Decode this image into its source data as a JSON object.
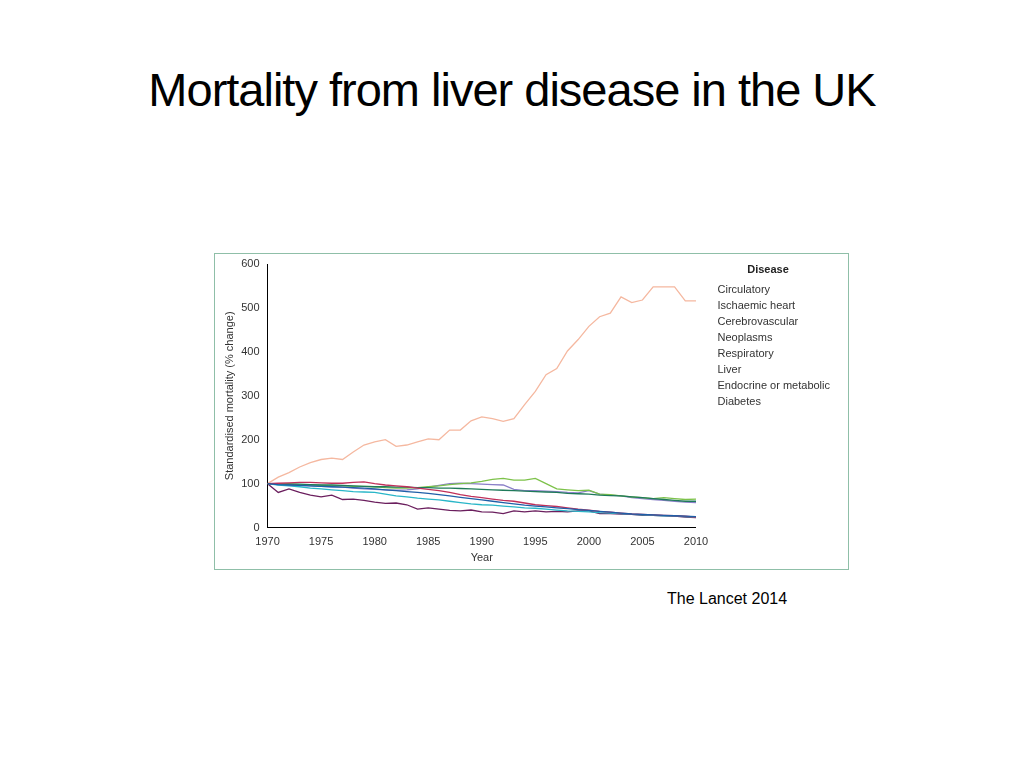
{
  "chart_data": {
    "type": "line",
    "title": "Mortality from liver disease in the UK",
    "source": "The Lancet 2014",
    "x_label": "Year",
    "y_label": "Standardised mortality (% change)",
    "legend_title": "Disease",
    "legend": "right",
    "grid": false,
    "xlim": [
      1970,
      2010
    ],
    "xticks": [
      1970,
      1975,
      1980,
      1985,
      1990,
      1995,
      2000,
      2005,
      2010
    ],
    "ylim": [
      0,
      600
    ],
    "yticks": [
      0,
      100,
      200,
      300,
      400,
      500,
      600
    ],
    "x": [
      1970,
      1971,
      1972,
      1973,
      1974,
      1975,
      1976,
      1977,
      1978,
      1979,
      1980,
      1981,
      1982,
      1983,
      1984,
      1985,
      1986,
      1987,
      1988,
      1989,
      1990,
      1991,
      1992,
      1993,
      1994,
      1995,
      1996,
      1997,
      1998,
      1999,
      2000,
      2001,
      2002,
      2003,
      2004,
      2005,
      2006,
      2007,
      2008,
      2009,
      2010
    ],
    "series": [
      {
        "name": "Circulatory",
        "color": "#1f5fa8",
        "values": [
          100,
          98,
          97,
          96,
          95,
          94,
          93,
          92,
          91,
          90,
          88,
          86,
          84,
          82,
          80,
          78,
          75,
          72,
          69,
          66,
          63,
          60,
          57,
          54,
          51,
          49,
          47,
          45,
          43,
          41,
          39,
          37,
          35,
          33,
          31,
          30,
          29,
          28,
          27,
          26,
          25
        ]
      },
      {
        "name": "Ischaemic heart",
        "color": "#c0305a",
        "values": [
          100,
          101,
          102,
          103,
          103,
          102,
          101,
          101,
          103,
          104,
          100,
          97,
          95,
          93,
          90,
          87,
          84,
          80,
          75,
          71,
          68,
          65,
          62,
          60,
          56,
          52,
          50,
          48,
          45,
          42,
          40,
          37,
          35,
          33,
          31,
          30,
          29,
          28,
          27,
          26,
          24
        ]
      },
      {
        "name": "Cerebrovascular",
        "color": "#29b6c8",
        "values": [
          100,
          97,
          95,
          93,
          90,
          88,
          86,
          84,
          82,
          81,
          80,
          76,
          72,
          70,
          67,
          65,
          63,
          60,
          57,
          54,
          52,
          51,
          49,
          47,
          45,
          44,
          42,
          40,
          38,
          37,
          36,
          34,
          33,
          32,
          30,
          29,
          28,
          27,
          26,
          25,
          24
        ]
      },
      {
        "name": "Neoplasms",
        "color": "#1f7a5a",
        "values": [
          100,
          99,
          99,
          99,
          98,
          97,
          97,
          96,
          95,
          94,
          93,
          93,
          92,
          92,
          91,
          91,
          90,
          90,
          89,
          88,
          87,
          86,
          85,
          84,
          83,
          82,
          81,
          80,
          78,
          77,
          76,
          74,
          73,
          72,
          70,
          68,
          66,
          64,
          62,
          60,
          60
        ]
      },
      {
        "name": "Respiratory",
        "color": "#6b1f5e",
        "values": [
          100,
          80,
          88,
          80,
          74,
          70,
          74,
          64,
          65,
          62,
          58,
          55,
          56,
          52,
          42,
          45,
          42,
          39,
          38,
          40,
          36,
          35,
          32,
          38,
          36,
          38,
          36,
          37,
          36,
          38,
          38,
          32,
          32,
          31,
          30,
          28,
          28,
          27,
          26,
          24,
          23
        ]
      },
      {
        "name": "Liver",
        "color": "#f5b8a0",
        "values": [
          100,
          115,
          125,
          138,
          148,
          155,
          158,
          155,
          172,
          188,
          195,
          200,
          185,
          188,
          195,
          202,
          200,
          222,
          222,
          243,
          252,
          248,
          242,
          248,
          280,
          310,
          348,
          362,
          402,
          428,
          458,
          480,
          488,
          525,
          512,
          518,
          548,
          548,
          548,
          516,
          516
        ]
      },
      {
        "name": "Endocrine or metabolic",
        "color": "#7dc24a",
        "values": [
          100,
          99,
          100,
          98,
          97,
          96,
          95,
          95,
          94,
          94,
          93,
          91,
          90,
          90,
          91,
          93,
          95,
          98,
          100,
          102,
          105,
          110,
          112,
          108,
          108,
          112,
          100,
          88,
          86,
          84,
          85,
          76,
          75,
          72,
          70,
          68,
          66,
          68,
          66,
          64,
          65
        ]
      },
      {
        "name": "Diabetes",
        "color": "#8a7fc8",
        "values": [
          100,
          98,
          97,
          96,
          95,
          94,
          93,
          92,
          90,
          88,
          87,
          86,
          85,
          86,
          88,
          92,
          96,
          100,
          101,
          100,
          99,
          98,
          97,
          87,
          84,
          84,
          83,
          82,
          80,
          79,
          84,
          76,
          74,
          72,
          68,
          66,
          64,
          62,
          60,
          58,
          57
        ]
      }
    ]
  }
}
